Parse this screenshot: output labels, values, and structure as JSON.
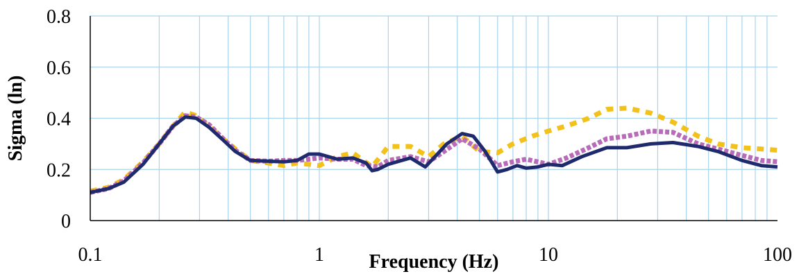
{
  "chart_data": {
    "type": "line",
    "title": "",
    "xlabel": "Frequency (Hz)",
    "ylabel": "Sigma (ln)",
    "x_scale": "log",
    "xlim": [
      0.1,
      100
    ],
    "ylim": [
      0,
      0.8
    ],
    "x_ticks": [
      0.1,
      1,
      10,
      100
    ],
    "x_tick_labels": [
      "0.1",
      "1",
      "10",
      "100"
    ],
    "y_ticks": [
      0,
      0.2,
      0.4,
      0.6,
      0.8
    ],
    "y_tick_labels": [
      "0",
      "0.2",
      "0.4",
      "0.6",
      "0.8"
    ],
    "grid": true,
    "legend": "none",
    "series": [
      {
        "color": "#f2c21b",
        "style": "dashed",
        "points": [
          [
            0.1,
            0.115
          ],
          [
            0.12,
            0.13
          ],
          [
            0.14,
            0.16
          ],
          [
            0.17,
            0.23
          ],
          [
            0.2,
            0.3
          ],
          [
            0.23,
            0.37
          ],
          [
            0.26,
            0.425
          ],
          [
            0.29,
            0.41
          ],
          [
            0.33,
            0.37
          ],
          [
            0.38,
            0.32
          ],
          [
            0.43,
            0.28
          ],
          [
            0.5,
            0.235
          ],
          [
            0.6,
            0.225
          ],
          [
            0.7,
            0.215
          ],
          [
            0.8,
            0.225
          ],
          [
            0.9,
            0.22
          ],
          [
            1.0,
            0.215
          ],
          [
            1.2,
            0.25
          ],
          [
            1.4,
            0.265
          ],
          [
            1.7,
            0.21
          ],
          [
            2.0,
            0.29
          ],
          [
            2.5,
            0.29
          ],
          [
            3.0,
            0.25
          ],
          [
            3.5,
            0.3
          ],
          [
            4.2,
            0.33
          ],
          [
            5.0,
            0.27
          ],
          [
            6.0,
            0.265
          ],
          [
            7.0,
            0.3
          ],
          [
            8.5,
            0.33
          ],
          [
            10,
            0.35
          ],
          [
            12,
            0.37
          ],
          [
            15,
            0.4
          ],
          [
            18,
            0.435
          ],
          [
            22,
            0.44
          ],
          [
            28,
            0.42
          ],
          [
            35,
            0.385
          ],
          [
            45,
            0.33
          ],
          [
            55,
            0.3
          ],
          [
            70,
            0.285
          ],
          [
            85,
            0.28
          ],
          [
            100,
            0.275
          ]
        ]
      },
      {
        "color": "#b86bb8",
        "style": "dashed",
        "points": [
          [
            0.1,
            0.11
          ],
          [
            0.12,
            0.125
          ],
          [
            0.14,
            0.155
          ],
          [
            0.17,
            0.225
          ],
          [
            0.2,
            0.3
          ],
          [
            0.23,
            0.37
          ],
          [
            0.26,
            0.41
          ],
          [
            0.29,
            0.405
          ],
          [
            0.33,
            0.375
          ],
          [
            0.38,
            0.32
          ],
          [
            0.43,
            0.275
          ],
          [
            0.5,
            0.235
          ],
          [
            0.6,
            0.232
          ],
          [
            0.7,
            0.235
          ],
          [
            0.8,
            0.235
          ],
          [
            0.9,
            0.24
          ],
          [
            1.0,
            0.245
          ],
          [
            1.2,
            0.24
          ],
          [
            1.4,
            0.24
          ],
          [
            1.6,
            0.215
          ],
          [
            1.8,
            0.21
          ],
          [
            2.0,
            0.235
          ],
          [
            2.5,
            0.25
          ],
          [
            3.0,
            0.23
          ],
          [
            3.5,
            0.27
          ],
          [
            4.2,
            0.32
          ],
          [
            5.0,
            0.28
          ],
          [
            6.0,
            0.215
          ],
          [
            7.0,
            0.23
          ],
          [
            8.0,
            0.24
          ],
          [
            10,
            0.22
          ],
          [
            12,
            0.245
          ],
          [
            15,
            0.285
          ],
          [
            18,
            0.32
          ],
          [
            22,
            0.33
          ],
          [
            28,
            0.35
          ],
          [
            35,
            0.345
          ],
          [
            45,
            0.3
          ],
          [
            55,
            0.28
          ],
          [
            70,
            0.255
          ],
          [
            85,
            0.235
          ],
          [
            100,
            0.23
          ]
        ]
      },
      {
        "color": "#1f2a6d",
        "style": "solid",
        "points": [
          [
            0.1,
            0.11
          ],
          [
            0.12,
            0.125
          ],
          [
            0.14,
            0.15
          ],
          [
            0.17,
            0.22
          ],
          [
            0.2,
            0.3
          ],
          [
            0.23,
            0.37
          ],
          [
            0.26,
            0.405
          ],
          [
            0.29,
            0.4
          ],
          [
            0.33,
            0.365
          ],
          [
            0.38,
            0.315
          ],
          [
            0.43,
            0.27
          ],
          [
            0.5,
            0.235
          ],
          [
            0.6,
            0.232
          ],
          [
            0.7,
            0.23
          ],
          [
            0.8,
            0.235
          ],
          [
            0.9,
            0.26
          ],
          [
            1.0,
            0.26
          ],
          [
            1.2,
            0.24
          ],
          [
            1.4,
            0.245
          ],
          [
            1.6,
            0.225
          ],
          [
            1.7,
            0.195
          ],
          [
            1.8,
            0.2
          ],
          [
            2.0,
            0.22
          ],
          [
            2.5,
            0.245
          ],
          [
            2.9,
            0.21
          ],
          [
            3.2,
            0.25
          ],
          [
            3.6,
            0.3
          ],
          [
            4.2,
            0.34
          ],
          [
            4.7,
            0.33
          ],
          [
            5.3,
            0.27
          ],
          [
            6.0,
            0.19
          ],
          [
            6.6,
            0.2
          ],
          [
            7.3,
            0.215
          ],
          [
            8.0,
            0.205
          ],
          [
            9.0,
            0.21
          ],
          [
            10,
            0.22
          ],
          [
            11.5,
            0.215
          ],
          [
            14,
            0.25
          ],
          [
            18,
            0.285
          ],
          [
            22,
            0.285
          ],
          [
            28,
            0.3
          ],
          [
            35,
            0.305
          ],
          [
            45,
            0.29
          ],
          [
            55,
            0.27
          ],
          [
            70,
            0.235
          ],
          [
            85,
            0.215
          ],
          [
            100,
            0.21
          ]
        ]
      }
    ]
  }
}
